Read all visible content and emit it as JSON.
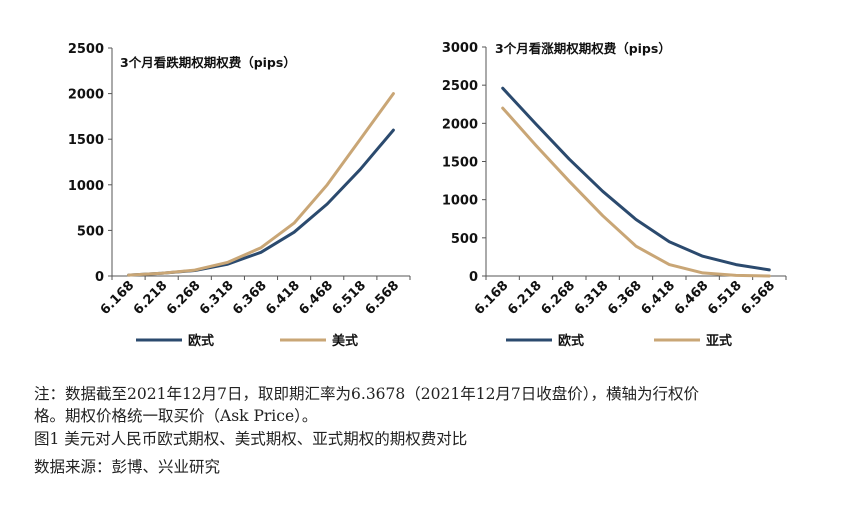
{
  "chart_data": [
    {
      "type": "line",
      "title": "3个月看跌期权期权费（pips）",
      "x": [
        "6.168",
        "6.218",
        "6.268",
        "6.318",
        "6.368",
        "6.418",
        "6.468",
        "6.518",
        "6.568"
      ],
      "ylim": [
        0,
        2500
      ],
      "yticks": [
        "0",
        "500",
        "1000",
        "1500",
        "2000",
        "2500"
      ],
      "series": [
        {
          "name": "欧式",
          "color": "#2b4a6e",
          "values": [
            10,
            30,
            60,
            130,
            260,
            480,
            790,
            1170,
            1600
          ]
        },
        {
          "name": "美式",
          "color": "#c9a676",
          "values": [
            10,
            30,
            65,
            150,
            310,
            580,
            1000,
            1500,
            2000
          ]
        }
      ],
      "legend": "bottom"
    },
    {
      "type": "line",
      "title": "3个月看涨期权期权费（pips）",
      "x": [
        "6.168",
        "6.218",
        "6.268",
        "6.318",
        "6.368",
        "6.418",
        "6.468",
        "6.518",
        "6.568"
      ],
      "ylim": [
        0,
        3000
      ],
      "yticks": [
        "0",
        "500",
        "1000",
        "1500",
        "2000",
        "2500",
        "3000"
      ],
      "series": [
        {
          "name": "欧式",
          "color": "#2b4a6e",
          "values": [
            2460,
            1990,
            1530,
            1110,
            740,
            450,
            260,
            150,
            80
          ]
        },
        {
          "name": "亚式",
          "color": "#c9a676",
          "values": [
            2200,
            1710,
            1240,
            790,
            390,
            150,
            40,
            8,
            0
          ]
        }
      ],
      "legend": "bottom"
    }
  ],
  "footer": {
    "note_line1": "注：数据截至2021年12月7日，取即期汇率为6.3678（2021年12月7日收盘价），横轴为行权价",
    "note_line2": "格。期权价格统一取买价（Ask Price）。",
    "caption": "图1 美元对人民币欧式期权、美式期权、亚式期权的期权费对比",
    "source": "数据来源：彭博、兴业研究"
  }
}
